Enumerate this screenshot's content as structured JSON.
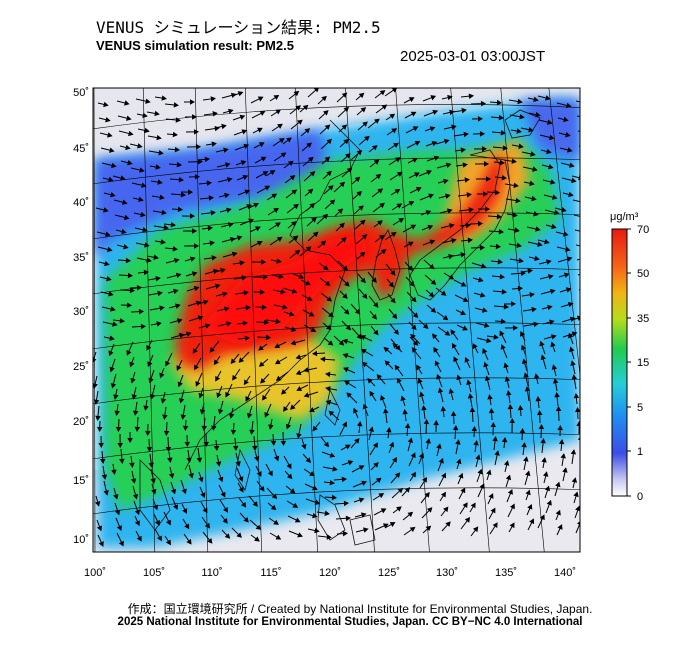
{
  "header": {
    "title_jp": "VENUS シミュレーション結果: PM2.5",
    "title_en": "VENUS simulation result: PM2.5",
    "timestamp": "2025-03-01 03:00JST"
  },
  "map": {
    "lon_ticks": [
      "100˚",
      "105˚",
      "110˚",
      "115˚",
      "120˚",
      "125˚",
      "130˚",
      "135˚",
      "140˚"
    ],
    "lat_ticks": [
      "50˚",
      "45˚",
      "40˚",
      "35˚",
      "30˚",
      "25˚",
      "20˚",
      "15˚",
      "10˚"
    ],
    "lon_range": [
      100,
      140
    ],
    "lat_range": [
      9,
      50
    ],
    "colors": {
      "ocean_low": "#2fb9f0",
      "land_mid": "#22d058",
      "high": "#ee2a12",
      "extreme": "#ff1010",
      "edge": "#4a6cf0"
    }
  },
  "colorbar": {
    "unit": "μg/m³",
    "ticks": [
      "70",
      "50",
      "35",
      "15",
      "5",
      "1",
      "0"
    ],
    "values": [
      0,
      1,
      5,
      15,
      35,
      50,
      70
    ]
  },
  "footer": {
    "credit": "作成：国立環境研究所 / Created by National Institute for Environmental Studies, Japan.",
    "copyright": "2025 National Institute for Environmental Studies, Japan. CC BY−NC 4.0 International"
  }
}
